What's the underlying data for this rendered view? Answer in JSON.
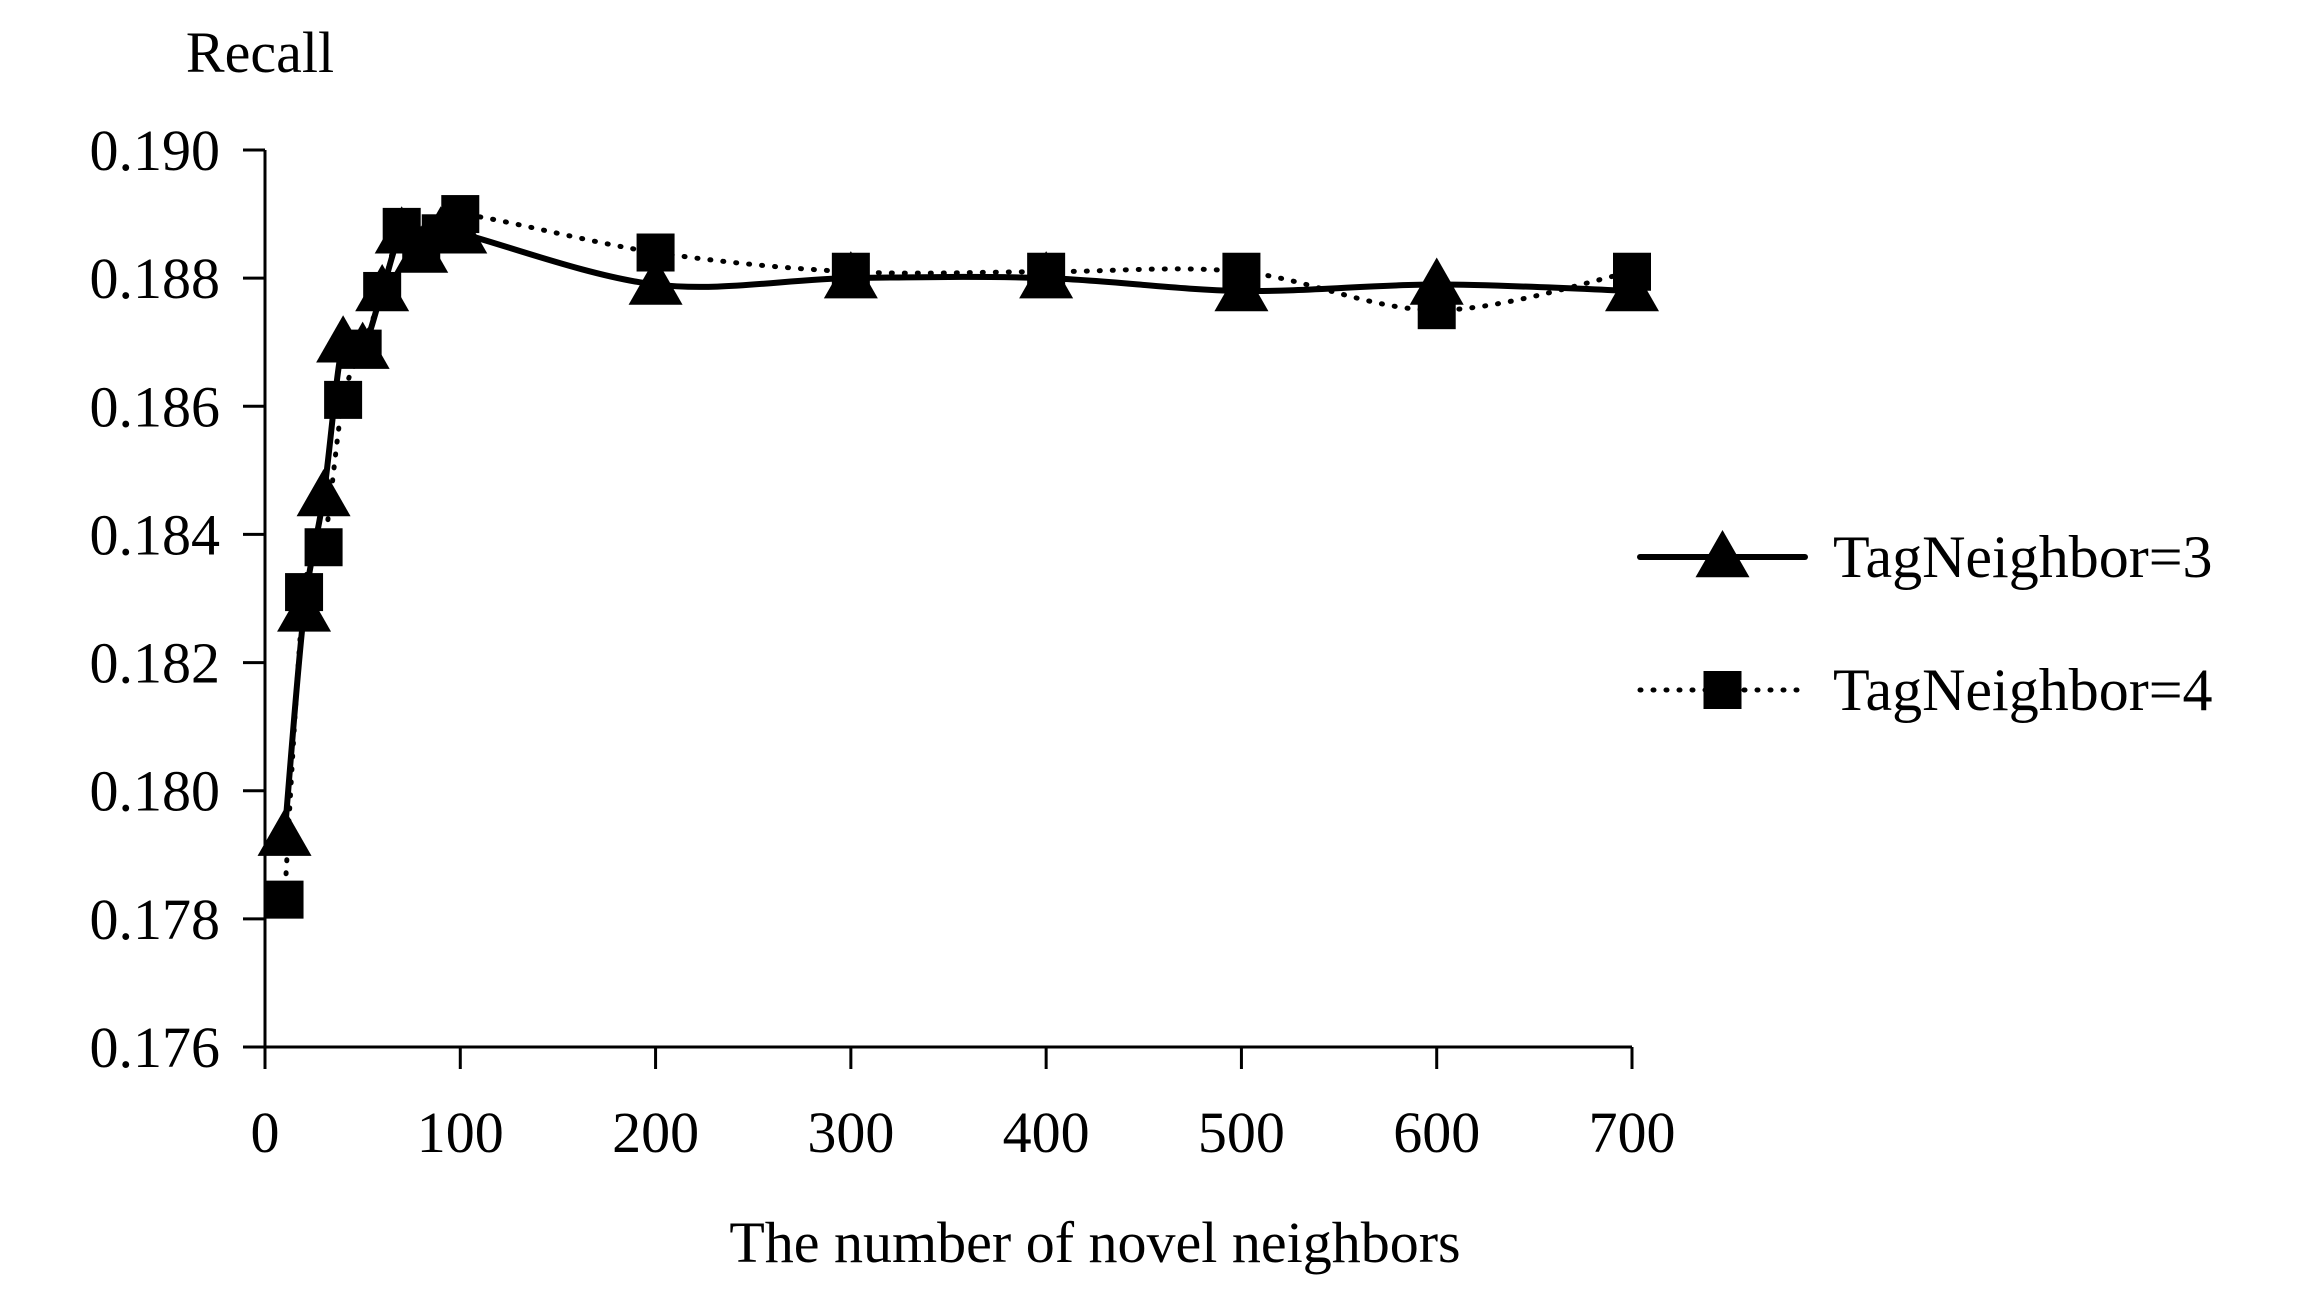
{
  "chart_data": {
    "type": "line",
    "title": "",
    "xlabel": "The number of novel neighbors",
    "ylabel": "Recall",
    "xlim": [
      0,
      700
    ],
    "ylim": [
      0.176,
      0.19
    ],
    "x_ticks": [
      0,
      100,
      200,
      300,
      400,
      500,
      600,
      700
    ],
    "x_tick_labels": [
      "0",
      "100",
      "200",
      "300",
      "400",
      "500",
      "600",
      "700"
    ],
    "y_ticks": [
      0.176,
      0.178,
      0.18,
      0.182,
      0.184,
      0.186,
      0.188,
      0.19
    ],
    "y_tick_labels": [
      "0.176",
      "0.178",
      "0.180",
      "0.182",
      "0.184",
      "0.186",
      "0.188",
      "0.190"
    ],
    "grid": false,
    "legend_position": "right",
    "series": [
      {
        "name": "TagNeighbor=3",
        "line_style": "solid",
        "marker": "triangle",
        "color": "#000000",
        "x": [
          10,
          20,
          30,
          40,
          50,
          60,
          70,
          80,
          90,
          100,
          200,
          300,
          400,
          500,
          600,
          700
        ],
        "y": [
          0.1793,
          0.1828,
          0.1846,
          0.187,
          0.1869,
          0.1878,
          0.1887,
          0.1884,
          0.1887,
          0.1887,
          0.1879,
          0.188,
          0.188,
          0.1878,
          0.1879,
          0.1878
        ]
      },
      {
        "name": "TagNeighbor=4",
        "line_style": "dotted",
        "marker": "square",
        "color": "#000000",
        "x": [
          10,
          20,
          30,
          40,
          50,
          60,
          70,
          80,
          90,
          100,
          200,
          300,
          400,
          500,
          600,
          700
        ],
        "y": [
          0.1783,
          0.1831,
          0.1838,
          0.1861,
          0.1869,
          0.1878,
          0.1888,
          0.1885,
          0.1887,
          0.189,
          0.1884,
          0.1881,
          0.1881,
          0.1881,
          0.1875,
          0.1881
        ]
      }
    ]
  }
}
